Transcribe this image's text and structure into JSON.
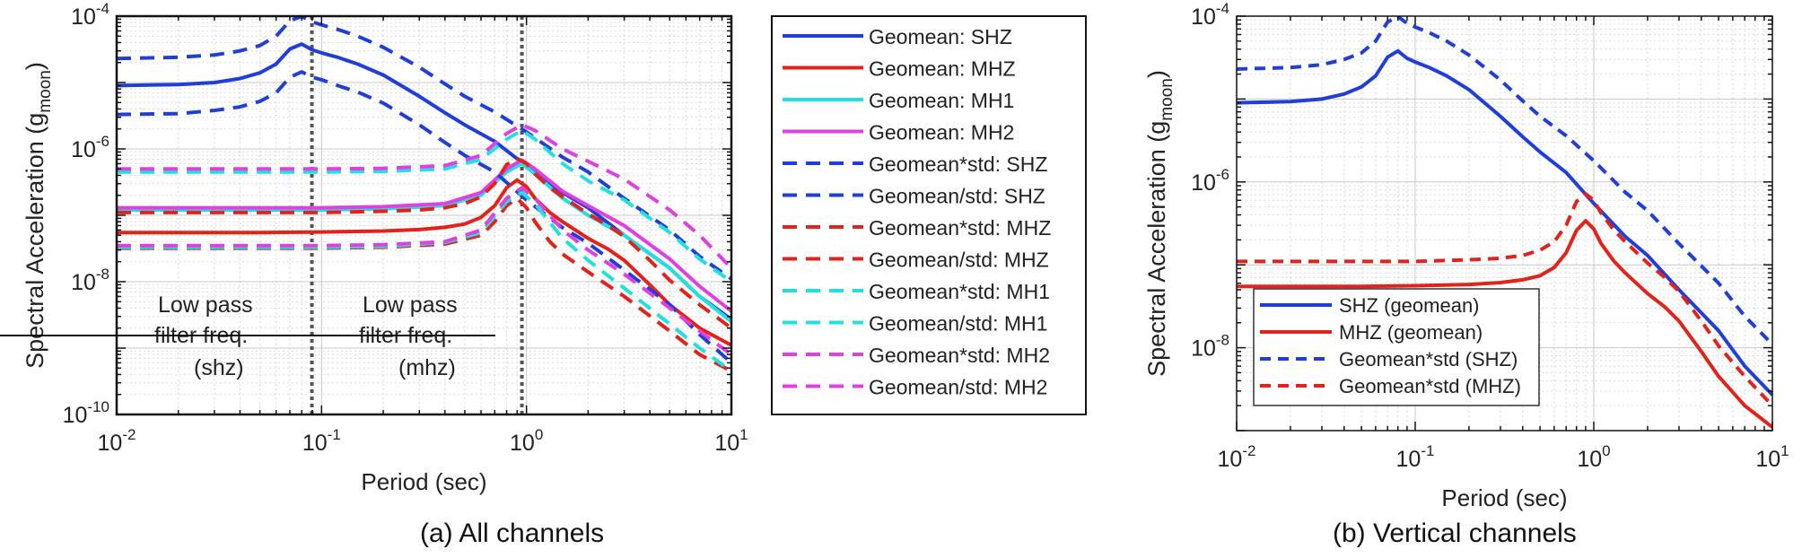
{
  "figure": {
    "caption_a": "(a)  All channels",
    "caption_b": "(b)  Vertical channels"
  },
  "chart_data": [
    {
      "type": "line",
      "panel": "a",
      "xlabel": "Period (sec)",
      "ylabel_main": "Spectral Acceleration (g",
      "ylabel_sub": "moon",
      "ylabel_close": ")",
      "xscale": "log",
      "yscale": "log",
      "xlim": [
        0.01,
        10
      ],
      "ylim": [
        1e-10,
        0.0001
      ],
      "grid": true,
      "legend_position": "outside-right",
      "x_ticks": [
        {
          "base": "10",
          "exp": "-2"
        },
        {
          "base": "10",
          "exp": "-1"
        },
        {
          "base": "10",
          "exp": "0"
        },
        {
          "base": "10",
          "exp": "1"
        }
      ],
      "y_ticks": [
        {
          "base": "10",
          "exp": "-10",
          "value": 1e-10
        },
        {
          "base": "10",
          "exp": "-8",
          "value": 1e-08
        },
        {
          "base": "10",
          "exp": "-6",
          "value": 1e-06
        },
        {
          "base": "10",
          "exp": "-4",
          "value": 0.0001
        }
      ],
      "annotations": [
        {
          "lines": [
            "Low pass",
            "filter freq.",
            "(shz)"
          ],
          "x": 0.0897
        },
        {
          "lines": [
            "Low pass",
            "filter freq.",
            "(mhz)"
          ],
          "x": 0.95
        }
      ],
      "series": [
        {
          "name": "Geomean: SHZ",
          "color": "#1f3fd8",
          "dash": false,
          "x": [
            0.01,
            0.02,
            0.03,
            0.04,
            0.05,
            0.06,
            0.07,
            0.08,
            0.09,
            0.1,
            0.12,
            0.15,
            0.2,
            0.3,
            0.4,
            0.5,
            0.7,
            1,
            1.5,
            2,
            3,
            5,
            7,
            10
          ],
          "y": [
            9e-06,
            9.3e-06,
            1e-05,
            1.15e-05,
            1.4e-05,
            1.9e-05,
            3.2e-05,
            3.8e-05,
            3.1e-05,
            2.8e-05,
            2.4e-05,
            1.9e-05,
            1.3e-05,
            6.2e-06,
            3.5e-06,
            2.3e-06,
            1.3e-06,
            5.5e-07,
            2.2e-07,
            1.3e-07,
            5e-08,
            1.6e-08,
            6e-09,
            2.7e-09
          ]
        },
        {
          "name": "Geomean: MHZ",
          "color": "#e2231a",
          "dash": false,
          "x": [
            0.01,
            0.05,
            0.1,
            0.2,
            0.3,
            0.4,
            0.5,
            0.6,
            0.7,
            0.8,
            0.9,
            1.0,
            1.1,
            1.3,
            1.5,
            2,
            2.5,
            3,
            4,
            5,
            7,
            10
          ],
          "y": [
            5.5e-08,
            5.5e-08,
            5.6e-08,
            5.8e-08,
            6.1e-08,
            6.6e-08,
            7.4e-08,
            9.3e-08,
            1.4e-07,
            2.6e-07,
            3.4e-07,
            2.7e-07,
            1.8e-07,
            1.1e-07,
            8e-08,
            4.5e-08,
            3.1e-08,
            2.1e-08,
            9e-09,
            4.5e-09,
            2e-09,
            1.1e-09
          ]
        },
        {
          "name": "Geomean: MH1",
          "color": "#22e0e0",
          "dash": false,
          "x": [
            0.01,
            0.1,
            0.2,
            0.4,
            0.6,
            0.8,
            0.95,
            1.1,
            1.5,
            2,
            3,
            5,
            7,
            10
          ],
          "y": [
            1.2e-07,
            1.2e-07,
            1.25e-07,
            1.4e-07,
            2e-07,
            4.5e-07,
            6e-07,
            4.2e-07,
            1.8e-07,
            1e-07,
            5e-08,
            1.6e-08,
            6e-09,
            2.5e-09
          ]
        },
        {
          "name": "Geomean: MH2",
          "color": "#e040e0",
          "dash": false,
          "x": [
            0.01,
            0.1,
            0.2,
            0.4,
            0.6,
            0.8,
            0.95,
            1.1,
            1.5,
            2,
            3,
            5,
            7,
            10
          ],
          "y": [
            1.3e-07,
            1.3e-07,
            1.35e-07,
            1.5e-07,
            2.2e-07,
            5e-07,
            6.8e-07,
            5e-07,
            2.3e-07,
            1.4e-07,
            7e-08,
            2.2e-08,
            8.5e-09,
            3.6e-09
          ]
        },
        {
          "name": "Geomean*std: SHZ",
          "color": "#1f3fd8",
          "dash": true,
          "x": [
            0.01,
            0.02,
            0.03,
            0.04,
            0.05,
            0.06,
            0.07,
            0.08,
            0.09,
            0.1,
            0.12,
            0.15,
            0.2,
            0.3,
            0.4,
            0.5,
            0.7,
            1,
            1.5,
            2,
            3,
            5,
            7,
            10
          ],
          "y": [
            2.3e-05,
            2.4e-05,
            2.6e-05,
            3e-05,
            3.6e-05,
            5e-05,
            8.5e-05,
            9.9e-05,
            8.2e-05,
            7.4e-05,
            6.3e-05,
            5e-05,
            3.4e-05,
            1.7e-05,
            9.5e-06,
            6.2e-06,
            3.6e-06,
            1.8e-06,
            7.5e-07,
            4.5e-07,
            1.8e-07,
            6e-08,
            2.4e-08,
            1.1e-08
          ]
        },
        {
          "name": "Geomean/std: SHZ",
          "color": "#1f3fd8",
          "dash": true,
          "x": [
            0.01,
            0.02,
            0.03,
            0.04,
            0.05,
            0.06,
            0.07,
            0.08,
            0.09,
            0.1,
            0.12,
            0.15,
            0.2,
            0.3,
            0.4,
            0.5,
            0.7,
            1,
            1.5,
            2,
            3,
            5,
            7,
            10
          ],
          "y": [
            3.3e-06,
            3.4e-06,
            3.8e-06,
            4.3e-06,
            5.2e-06,
            7e-06,
            1.2e-05,
            1.45e-05,
            1.2e-05,
            1.1e-05,
            9e-06,
            7.2e-06,
            4.9e-06,
            2.3e-06,
            1.25e-06,
            8e-07,
            4.5e-07,
            1.7e-07,
            6.5e-08,
            3.8e-08,
            1.5e-08,
            4.5e-09,
            1.6e-09,
            6e-10
          ]
        },
        {
          "name": "Geomean*std: MHZ",
          "color": "#e2231a",
          "dash": true,
          "x": [
            0.01,
            0.1,
            0.2,
            0.3,
            0.4,
            0.5,
            0.6,
            0.7,
            0.8,
            0.9,
            1.0,
            1.1,
            1.3,
            1.5,
            2,
            2.5,
            3,
            4,
            5,
            7,
            10
          ],
          "y": [
            1.1e-07,
            1.1e-07,
            1.15e-07,
            1.2e-07,
            1.3e-07,
            1.5e-07,
            1.9e-07,
            3e-07,
            5.8e-07,
            7.2e-07,
            6e-07,
            4.2e-07,
            2.6e-07,
            1.9e-07,
            1.05e-07,
            7e-08,
            4.8e-08,
            2.1e-08,
            1.05e-08,
            4.5e-09,
            2e-09
          ]
        },
        {
          "name": "Geomean/std: MHZ",
          "color": "#e2231a",
          "dash": true,
          "x": [
            0.01,
            0.1,
            0.2,
            0.4,
            0.6,
            0.7,
            0.8,
            0.9,
            1.0,
            1.1,
            1.3,
            1.5,
            2,
            3,
            5,
            7,
            10
          ],
          "y": [
            3.2e-08,
            3.2e-08,
            3.3e-08,
            3.7e-08,
            5e-08,
            8e-08,
            1.4e-07,
            1.8e-07,
            1.3e-07,
            8e-08,
            4e-08,
            2.6e-08,
            1.4e-08,
            6e-09,
            1.8e-09,
            8e-10,
            4.5e-10
          ]
        },
        {
          "name": "Geomean*std: MH1",
          "color": "#22e0e0",
          "dash": true,
          "x": [
            0.01,
            0.1,
            0.2,
            0.4,
            0.6,
            0.8,
            0.95,
            1.1,
            1.5,
            2,
            3,
            5,
            7,
            10
          ],
          "y": [
            4.5e-07,
            4.5e-07,
            4.6e-07,
            5e-07,
            7e-07,
            1.4e-06,
            1.9e-06,
            1.4e-06,
            6e-07,
            3.3e-07,
            1.7e-07,
            5.5e-08,
            2.2e-08,
            1e-08
          ]
        },
        {
          "name": "Geomean/std: MH1",
          "color": "#22e0e0",
          "dash": true,
          "x": [
            0.01,
            0.1,
            0.2,
            0.4,
            0.6,
            0.8,
            0.95,
            1.1,
            1.5,
            2,
            3,
            5,
            7,
            10
          ],
          "y": [
            3.3e-08,
            3.3e-08,
            3.4e-08,
            3.9e-08,
            5.5e-08,
            1.6e-07,
            2.2e-07,
            1.5e-07,
            4.5e-08,
            2.1e-08,
            8e-09,
            2.3e-09,
            1e-09,
            4.5e-10
          ]
        },
        {
          "name": "Geomean*std: MH2",
          "color": "#e040e0",
          "dash": true,
          "x": [
            0.01,
            0.1,
            0.2,
            0.4,
            0.6,
            0.8,
            0.95,
            1.1,
            1.5,
            2,
            3,
            5,
            7,
            10
          ],
          "y": [
            5e-07,
            5e-07,
            5.1e-07,
            5.6e-07,
            8e-07,
            1.7e-06,
            2.3e-06,
            1.9e-06,
            1e-06,
            6.5e-07,
            3.5e-07,
            1.2e-07,
            5e-08,
            1.6e-08
          ]
        },
        {
          "name": "Geomean/std: MH2",
          "color": "#e040e0",
          "dash": true,
          "x": [
            0.01,
            0.1,
            0.2,
            0.4,
            0.6,
            0.8,
            0.95,
            1.1,
            1.5,
            2,
            3,
            5,
            7,
            10
          ],
          "y": [
            3.5e-08,
            3.5e-08,
            3.6e-08,
            4e-08,
            6e-08,
            1.8e-07,
            2.6e-07,
            1.8e-07,
            6e-08,
            3e-08,
            1.3e-08,
            4e-09,
            1.8e-09,
            8e-10
          ]
        }
      ]
    },
    {
      "type": "line",
      "panel": "b",
      "xlabel": "Period (sec)",
      "ylabel_main": "Spectral Acceleration (g",
      "ylabel_sub": "moon",
      "ylabel_close": ")",
      "xscale": "log",
      "yscale": "log",
      "xlim": [
        0.01,
        10
      ],
      "ylim": [
        1e-09,
        0.0001
      ],
      "grid": true,
      "legend_position": "bottom-left",
      "x_ticks": [
        {
          "base": "10",
          "exp": "-2"
        },
        {
          "base": "10",
          "exp": "-1"
        },
        {
          "base": "10",
          "exp": "0"
        },
        {
          "base": "10",
          "exp": "1"
        }
      ],
      "y_ticks": [
        {
          "base": "10",
          "exp": "-8",
          "value": 1e-08
        },
        {
          "base": "10",
          "exp": "-6",
          "value": 1e-06
        },
        {
          "base": "10",
          "exp": "-4",
          "value": 0.0001
        }
      ],
      "series": [
        {
          "name": "SHZ (geomean)",
          "color": "#1f3fd8",
          "dash": false,
          "x": [
            0.01,
            0.02,
            0.03,
            0.04,
            0.05,
            0.06,
            0.07,
            0.08,
            0.09,
            0.1,
            0.12,
            0.15,
            0.2,
            0.3,
            0.4,
            0.5,
            0.7,
            1,
            1.5,
            2,
            3,
            5,
            7,
            10
          ],
          "y": [
            9e-06,
            9.3e-06,
            1e-05,
            1.15e-05,
            1.4e-05,
            1.9e-05,
            3.2e-05,
            3.8e-05,
            3.1e-05,
            2.8e-05,
            2.4e-05,
            1.9e-05,
            1.3e-05,
            6.2e-06,
            3.5e-06,
            2.3e-06,
            1.3e-06,
            5.5e-07,
            2.2e-07,
            1.3e-07,
            5e-08,
            1.6e-08,
            6e-09,
            2.7e-09
          ]
        },
        {
          "name": "MHZ (geomean)",
          "color": "#e2231a",
          "dash": false,
          "x": [
            0.01,
            0.05,
            0.1,
            0.2,
            0.3,
            0.4,
            0.5,
            0.6,
            0.7,
            0.8,
            0.9,
            1.0,
            1.1,
            1.3,
            1.5,
            2,
            2.5,
            3,
            4,
            5,
            7,
            10
          ],
          "y": [
            5.5e-08,
            5.5e-08,
            5.6e-08,
            5.8e-08,
            6.1e-08,
            6.6e-08,
            7.4e-08,
            9.3e-08,
            1.4e-07,
            2.6e-07,
            3.4e-07,
            2.7e-07,
            1.8e-07,
            1.1e-07,
            8e-08,
            4.5e-08,
            3.1e-08,
            2.1e-08,
            9e-09,
            4.5e-09,
            2e-09,
            1.1e-09
          ]
        },
        {
          "name": "Geomean*std (SHZ)",
          "color": "#1f3fd8",
          "dash": true,
          "x": [
            0.01,
            0.02,
            0.03,
            0.04,
            0.05,
            0.06,
            0.07,
            0.08,
            0.09,
            0.1,
            0.12,
            0.15,
            0.2,
            0.3,
            0.4,
            0.5,
            0.7,
            1,
            1.5,
            2,
            3,
            5,
            7,
            10
          ],
          "y": [
            2.3e-05,
            2.4e-05,
            2.6e-05,
            3e-05,
            3.6e-05,
            5e-05,
            8.5e-05,
            9.9e-05,
            8.2e-05,
            7.4e-05,
            6.3e-05,
            5e-05,
            3.4e-05,
            1.7e-05,
            9.5e-06,
            6.2e-06,
            3.6e-06,
            1.8e-06,
            7.5e-07,
            4.5e-07,
            1.8e-07,
            6e-08,
            2.4e-08,
            1.1e-08
          ]
        },
        {
          "name": "Geomean*std (MHZ)",
          "color": "#e2231a",
          "dash": true,
          "x": [
            0.01,
            0.1,
            0.2,
            0.3,
            0.4,
            0.5,
            0.6,
            0.7,
            0.8,
            0.9,
            1.0,
            1.1,
            1.3,
            1.5,
            2,
            2.5,
            3,
            4,
            5,
            7,
            10
          ],
          "y": [
            1.1e-07,
            1.1e-07,
            1.15e-07,
            1.2e-07,
            1.3e-07,
            1.5e-07,
            1.9e-07,
            3e-07,
            5.8e-07,
            7.2e-07,
            6e-07,
            4.2e-07,
            2.6e-07,
            1.9e-07,
            1.05e-07,
            7e-08,
            4.8e-08,
            2.1e-08,
            1.05e-08,
            4.5e-09,
            2e-09
          ]
        }
      ]
    }
  ]
}
